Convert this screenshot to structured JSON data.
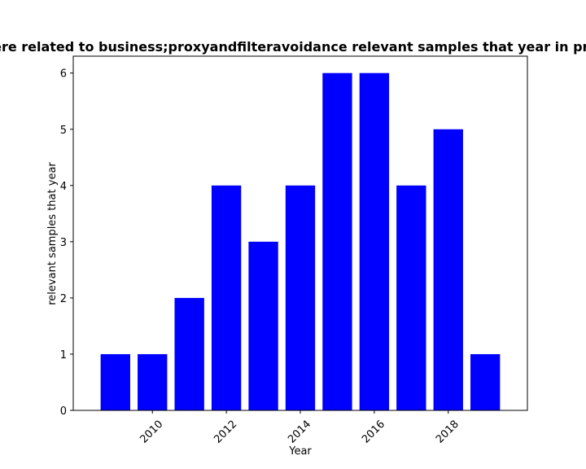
{
  "chart_data": {
    "type": "bar",
    "title": "ere related to business;proxyandfilteravoidance relevant samples that year in pri",
    "xlabel": "Year",
    "ylabel": "relevant samples that year",
    "x": [
      2009,
      2010,
      2011,
      2012,
      2013,
      2014,
      2015,
      2016,
      2017,
      2018,
      2019
    ],
    "values": [
      1,
      1,
      2,
      4,
      3,
      4,
      6,
      6,
      4,
      5,
      1
    ],
    "xlim": [
      2007.86,
      2020.14
    ],
    "ylim": [
      0,
      6.3
    ],
    "xticks": [
      "2010",
      "2012",
      "2014",
      "2016",
      "2018"
    ],
    "yticks": [
      "0",
      "1",
      "2",
      "3",
      "4",
      "5",
      "6"
    ],
    "bar_color": "#0000ff",
    "grid": false,
    "legend": "none"
  }
}
